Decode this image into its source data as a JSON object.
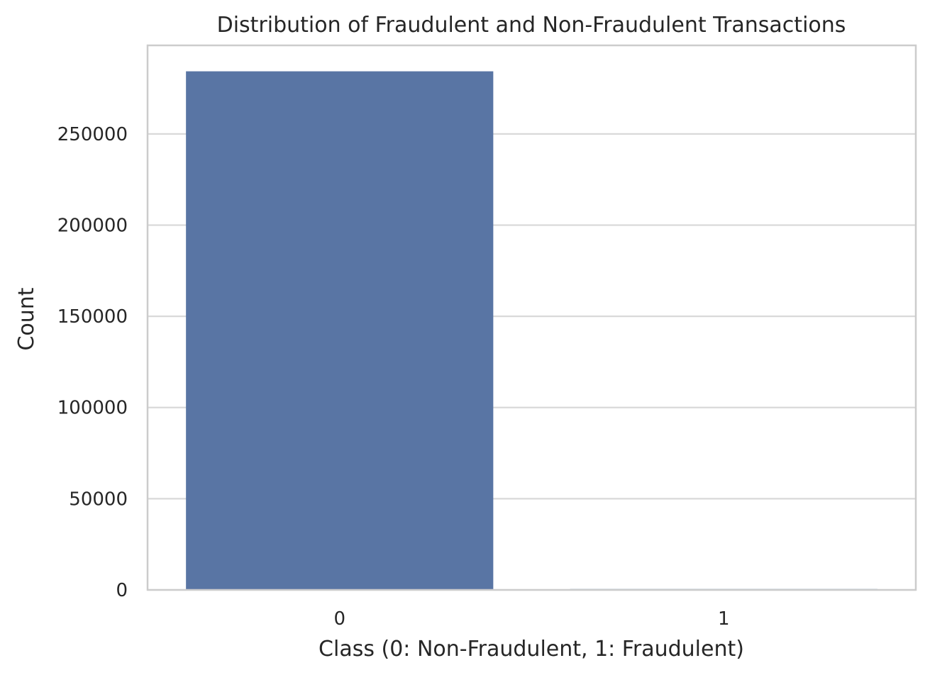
{
  "chart_data": {
    "type": "bar",
    "title": "Distribution of Fraudulent and Non-Fraudulent Transactions",
    "xlabel": "Class (0: Non-Fraudulent, 1: Fraudulent)",
    "ylabel": "Count",
    "categories": [
      "0",
      "1"
    ],
    "values": [
      284315,
      492
    ],
    "ylim": [
      0,
      298531
    ],
    "yticks": [
      0,
      50000,
      100000,
      150000,
      200000,
      250000
    ],
    "ytick_labels": [
      "0",
      "50000",
      "100000",
      "150000",
      "200000",
      "250000"
    ],
    "grid": true,
    "bar_color": "#5975a4",
    "grid_color": "#d9d9d9",
    "spine_color": "#cccccc",
    "background_color": "#ffffff"
  }
}
